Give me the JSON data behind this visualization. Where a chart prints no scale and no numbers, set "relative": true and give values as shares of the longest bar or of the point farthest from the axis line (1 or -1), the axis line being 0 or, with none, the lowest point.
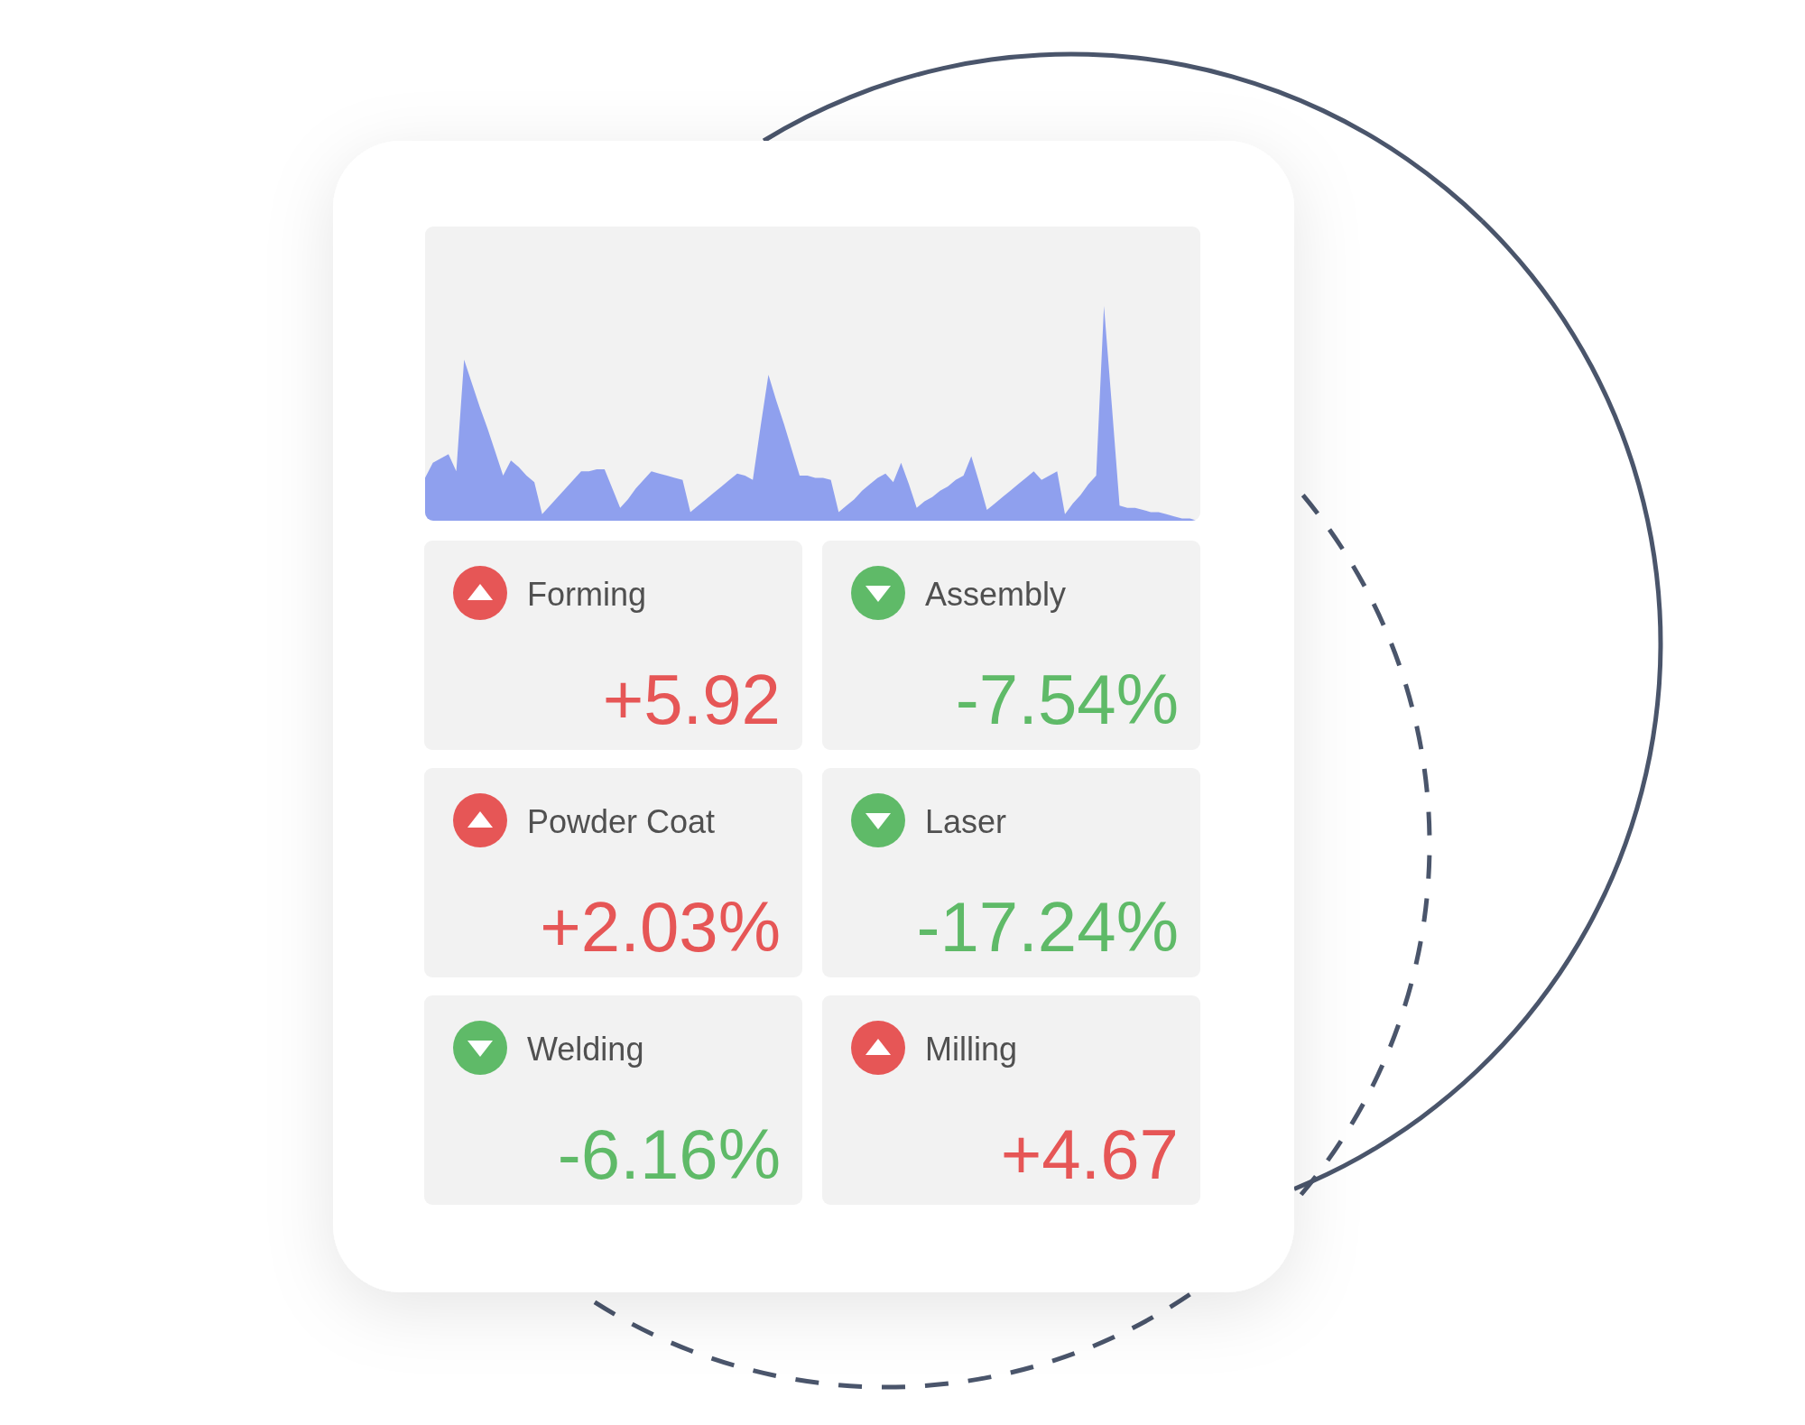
{
  "chart_data": [
    {
      "type": "area",
      "relative": true,
      "color": "#8fa0ee",
      "categories": [
        null,
        null,
        null,
        null,
        null,
        null,
        null,
        null,
        null,
        null,
        null,
        null,
        null,
        null,
        null,
        null,
        null,
        null,
        null,
        null,
        null,
        null,
        null,
        null,
        null,
        null,
        null,
        null,
        null,
        null,
        null,
        null,
        null,
        null,
        null,
        null,
        null,
        null,
        null,
        null,
        null,
        null,
        null,
        null,
        null,
        null,
        null,
        null,
        null,
        null,
        null,
        null,
        null,
        null,
        null,
        null,
        null,
        null,
        null,
        null,
        null,
        null,
        null,
        null,
        null,
        null,
        null,
        null,
        null,
        null,
        null,
        null,
        null,
        null,
        null,
        null,
        null,
        null,
        null,
        null,
        null,
        null,
        null,
        null,
        null,
        null,
        null,
        null,
        null,
        null,
        null,
        null,
        null,
        null,
        null,
        null,
        null,
        null,
        null,
        null
      ],
      "values": [
        0.2,
        0.27,
        0.29,
        0.31,
        0.23,
        0.75,
        0.64,
        0.53,
        0.43,
        0.32,
        0.21,
        0.28,
        0.25,
        0.21,
        0.18,
        0.03,
        0.07,
        0.11,
        0.15,
        0.19,
        0.23,
        0.23,
        0.24,
        0.24,
        0.15,
        0.06,
        0.1,
        0.15,
        0.19,
        0.23,
        0.22,
        0.21,
        0.2,
        0.19,
        0.04,
        0.07,
        0.1,
        0.13,
        0.16,
        0.19,
        0.22,
        0.21,
        0.19,
        0.44,
        0.68,
        0.56,
        0.45,
        0.33,
        0.21,
        0.21,
        0.2,
        0.2,
        0.19,
        0.04,
        0.07,
        0.1,
        0.14,
        0.17,
        0.2,
        0.22,
        0.18,
        0.27,
        0.17,
        0.06,
        0.09,
        0.11,
        0.14,
        0.16,
        0.19,
        0.21,
        0.3,
        0.18,
        0.05,
        0.08,
        0.11,
        0.14,
        0.17,
        0.2,
        0.23,
        0.19,
        0.21,
        0.23,
        0.03,
        0.08,
        0.12,
        0.17,
        0.21,
        1,
        0.54,
        0.07,
        0.06,
        0.06,
        0.05,
        0.04,
        0.04,
        0.03,
        0.02,
        0.01,
        0.01,
        0
      ]
    },
    {
      "type": "other",
      "categories": [
        "Forming",
        "Assembly",
        "Powder Coat",
        "Laser",
        "Welding",
        "Milling"
      ],
      "values": [
        5.92,
        -7.54,
        2.03,
        -17.24,
        -6.16,
        4.67
      ],
      "value_labels": [
        "+5.92",
        "-7.54%",
        "+2.03%",
        "-17.24%",
        "-6.16%",
        "+4.67"
      ]
    }
  ]
}
